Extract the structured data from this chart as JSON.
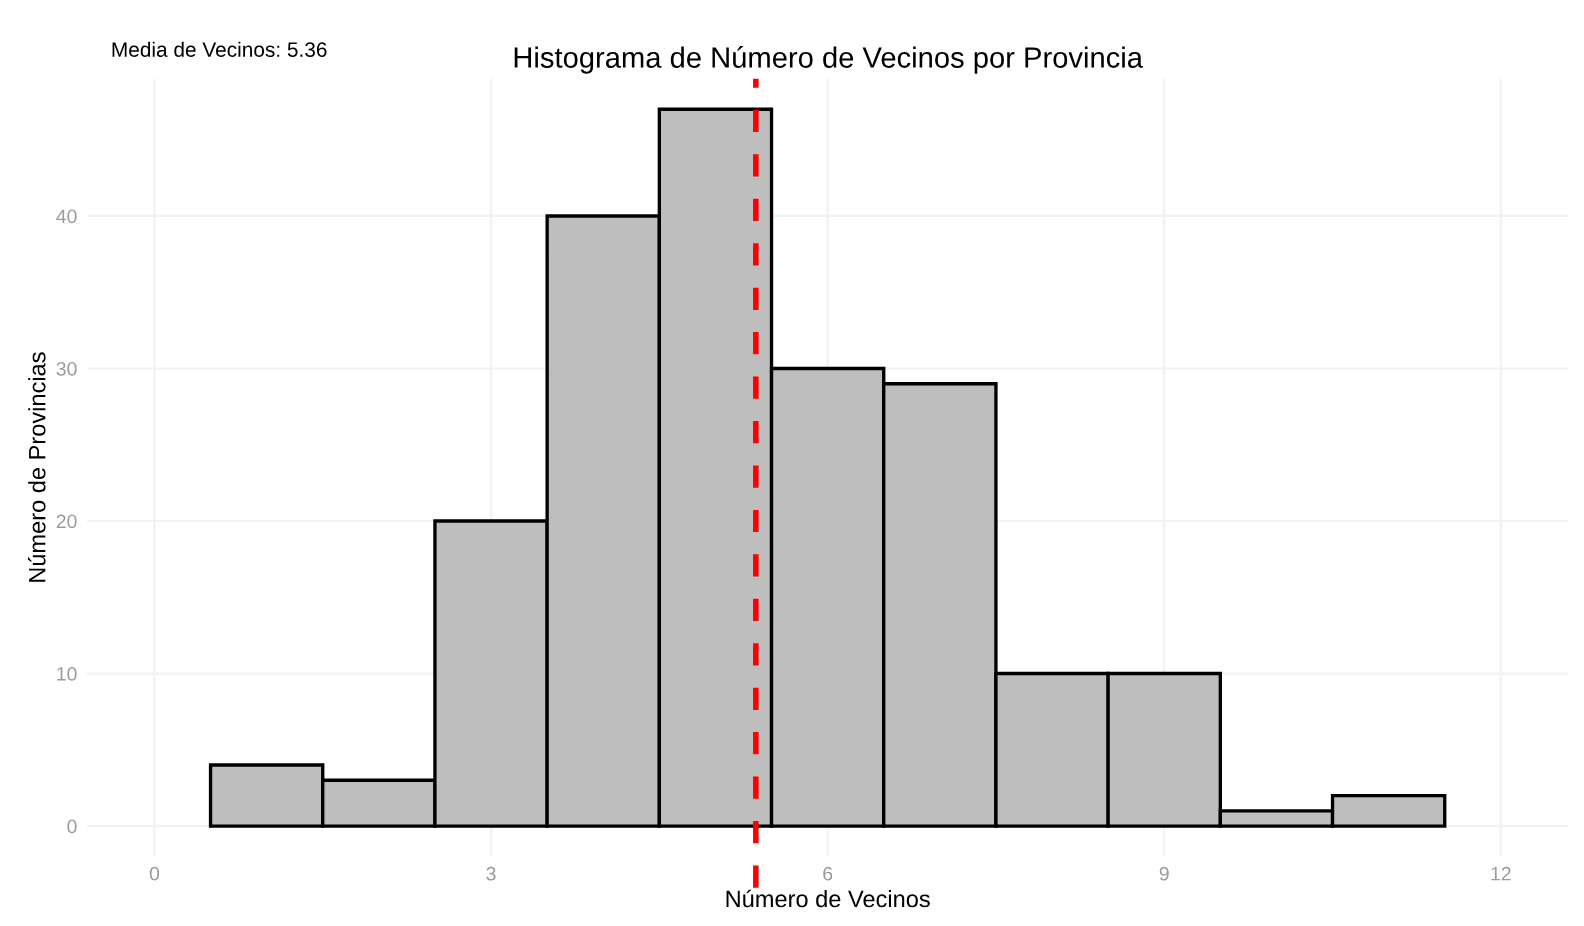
{
  "chart_data": {
    "type": "histogram",
    "title": "Histograma de Número de Vecinos por Provincia",
    "xlabel": "Número de Vecinos",
    "ylabel": "Número de Provincias",
    "bins": [
      0.5,
      1.5,
      2.5,
      3.5,
      4.5,
      5.5,
      6.5,
      7.5,
      8.5,
      9.5,
      10.5,
      11.5
    ],
    "values": [
      4,
      3,
      20,
      40,
      47,
      30,
      29,
      10,
      10,
      1,
      2
    ],
    "color": "#bebebe",
    "xlim": [
      -0.6,
      12.6
    ],
    "xticks": [
      0,
      3,
      6,
      9,
      12
    ],
    "ylim": [
      -2,
      49
    ],
    "yticks": [
      0,
      10,
      20,
      30,
      40
    ],
    "grid": true,
    "ref_lines": [
      {
        "axis": "x",
        "value": 5.36,
        "color": "#ff0000",
        "line_style": "dashed"
      }
    ],
    "annotations": [
      "Media de Vecinos: 5.36"
    ]
  }
}
